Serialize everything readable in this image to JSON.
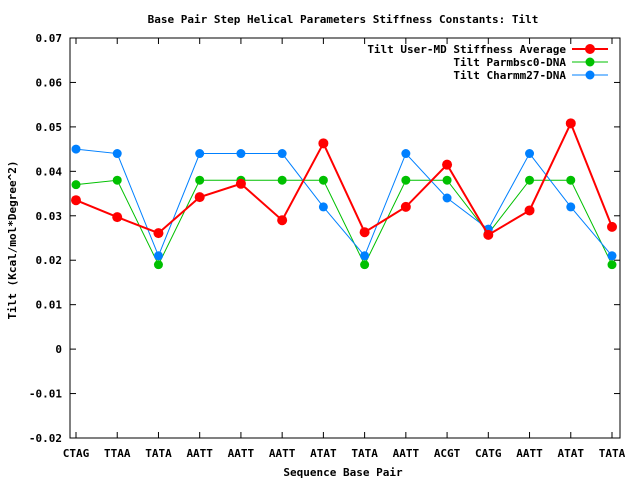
{
  "chart_data": {
    "type": "line",
    "title": "Base Pair Step Helical Parameters Stiffness Constants: Tilt",
    "xlabel": "Sequence Base Pair",
    "ylabel": "Tilt (Kcal/mol*Degree^2)",
    "categories": [
      "CTAG",
      "TTAA",
      "TATA",
      "AATT",
      "AATT",
      "AATT",
      "ATAT",
      "TATA",
      "AATT",
      "ACGT",
      "CATG",
      "AATT",
      "ATAT",
      "TATA"
    ],
    "ylim": [
      -0.02,
      0.07
    ],
    "yticks": [
      "-0.02",
      "-0.01",
      "0",
      "0.01",
      "0.02",
      "0.03",
      "0.04",
      "0.05",
      "0.06",
      "0.07"
    ],
    "legend_position": "top-right",
    "grid": false,
    "series": [
      {
        "name": "Tilt User-MD Stiffness Average",
        "color": "#ff0000",
        "values": [
          0.0335,
          0.0297,
          0.0261,
          0.0342,
          0.0372,
          0.029,
          0.0463,
          0.0263,
          0.032,
          0.0415,
          0.0257,
          0.0312,
          0.0508,
          0.0275
        ]
      },
      {
        "name": "Tilt Parmbsc0-DNA",
        "color": "#00c000",
        "values": [
          0.037,
          0.038,
          0.019,
          0.038,
          0.038,
          0.038,
          0.038,
          0.019,
          0.038,
          0.038,
          0.026,
          0.038,
          0.038,
          0.019
        ]
      },
      {
        "name": "Tilt Charmm27-DNA",
        "color": "#0080ff",
        "values": [
          0.045,
          0.044,
          0.021,
          0.044,
          0.044,
          0.044,
          0.032,
          0.021,
          0.044,
          0.034,
          0.027,
          0.044,
          0.032,
          0.021
        ]
      }
    ]
  }
}
